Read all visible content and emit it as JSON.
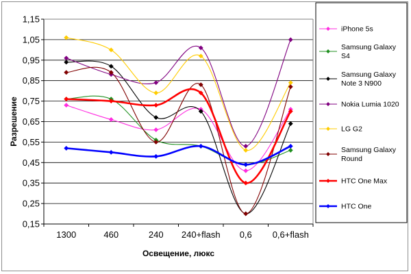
{
  "chart_data": {
    "type": "line",
    "title": "",
    "xlabel": "Освещение, люкс",
    "ylabel": "Разрешение",
    "categories": [
      "1300",
      "460",
      "240",
      "240+flash",
      "0,6",
      "0,6+flash"
    ],
    "ylim": [
      0.15,
      1.15
    ],
    "yticks": [
      "0,15",
      "0,25",
      "0,35",
      "0,45",
      "0,55",
      "0,65",
      "0,75",
      "0,85",
      "0,95",
      "1,05",
      "1,15"
    ],
    "grid": "horizontal",
    "legend": "right",
    "series": [
      {
        "name": "iPhone 5s",
        "color": "#ff2de0",
        "marker": "diamond",
        "values": [
          0.73,
          0.66,
          0.61,
          0.71,
          0.41,
          0.71
        ]
      },
      {
        "name": "Samsung Galaxy S4",
        "legend_lines": [
          "Samsung Galaxy",
          "S4"
        ],
        "color": "#1f8f1f",
        "marker": "diamond",
        "values": [
          0.76,
          0.76,
          0.56,
          0.53,
          0.44,
          0.51
        ]
      },
      {
        "name": "Samsung Galaxy Note 3 N900",
        "legend_lines": [
          "Samsung Galaxy",
          "Note 3 N900"
        ],
        "color": "#000000",
        "marker": "diamond",
        "values": [
          0.94,
          0.92,
          0.67,
          0.7,
          0.2,
          0.64
        ]
      },
      {
        "name": "Nokia Lumia 1020",
        "color": "#800080",
        "marker": "diamond",
        "values": [
          0.96,
          0.88,
          0.84,
          1.01,
          0.53,
          1.05
        ]
      },
      {
        "name": "LG G2",
        "color": "#ffcc00",
        "marker": "diamond",
        "values": [
          1.06,
          1.0,
          0.79,
          0.97,
          0.51,
          0.84
        ]
      },
      {
        "name": "Samsung Galaxy Round",
        "legend_lines": [
          "Samsung Galaxy",
          "Round"
        ],
        "color": "#800000",
        "marker": "diamond",
        "values": [
          0.89,
          0.89,
          0.55,
          0.83,
          0.2,
          0.82
        ]
      },
      {
        "name": "HTC One Max",
        "color": "#ff0000",
        "marker": "diamond",
        "values": [
          0.76,
          0.75,
          0.73,
          0.79,
          0.35,
          0.7
        ]
      },
      {
        "name": "HTC One",
        "color": "#0000ff",
        "marker": "diamond",
        "values": [
          0.52,
          0.5,
          0.48,
          0.53,
          0.44,
          0.53
        ]
      }
    ]
  }
}
